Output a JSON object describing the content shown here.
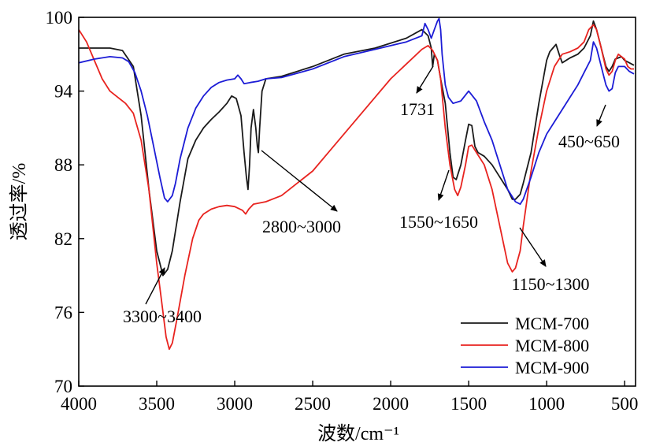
{
  "chart_data": {
    "type": "line",
    "title": "",
    "xlabel": "波数/cm⁻¹",
    "ylabel": "透过率/%",
    "xlim": [
      4000,
      430
    ],
    "ylim": [
      70,
      100
    ],
    "x_ticks": [
      4000,
      3500,
      3000,
      2500,
      2000,
      1500,
      1000,
      500
    ],
    "x_tick_labels": [
      "4000",
      "3500",
      "3000",
      "2500",
      "2000",
      "1500",
      "1000",
      "500"
    ],
    "y_ticks": [
      70,
      76,
      82,
      88,
      94,
      100
    ],
    "y_tick_labels": [
      "70",
      "76",
      "82",
      "88",
      "94",
      "100"
    ],
    "legend": {
      "placement": "bottom-right",
      "entries": [
        "MCM-700",
        "MCM-800",
        "MCM-900"
      ]
    },
    "colors": {
      "MCM-700": "#1a1a1a",
      "MCM-800": "#e8231f",
      "MCM-900": "#1c1cd6"
    },
    "series": [
      {
        "name": "MCM-700",
        "points": [
          [
            4000,
            97.5
          ],
          [
            3800,
            97.5
          ],
          [
            3720,
            97.3
          ],
          [
            3650,
            96
          ],
          [
            3600,
            92
          ],
          [
            3550,
            86
          ],
          [
            3500,
            81
          ],
          [
            3460,
            79
          ],
          [
            3430,
            79.5
          ],
          [
            3400,
            81
          ],
          [
            3350,
            85
          ],
          [
            3300,
            88.5
          ],
          [
            3250,
            90
          ],
          [
            3200,
            91
          ],
          [
            3150,
            91.7
          ],
          [
            3100,
            92.3
          ],
          [
            3050,
            93
          ],
          [
            3020,
            93.6
          ],
          [
            2990,
            93.4
          ],
          [
            2960,
            92
          ],
          [
            2940,
            89
          ],
          [
            2925,
            87
          ],
          [
            2915,
            86
          ],
          [
            2905,
            88
          ],
          [
            2895,
            91
          ],
          [
            2880,
            92.5
          ],
          [
            2865,
            91
          ],
          [
            2855,
            89.5
          ],
          [
            2848,
            89
          ],
          [
            2840,
            91
          ],
          [
            2825,
            94
          ],
          [
            2800,
            95
          ],
          [
            2700,
            95.2
          ],
          [
            2500,
            96
          ],
          [
            2300,
            97
          ],
          [
            2100,
            97.5
          ],
          [
            1900,
            98.3
          ],
          [
            1800,
            99
          ],
          [
            1760,
            98.5
          ],
          [
            1740,
            97.5
          ],
          [
            1731,
            96
          ],
          [
            1720,
            97
          ],
          [
            1700,
            96.5
          ],
          [
            1680,
            95
          ],
          [
            1650,
            93
          ],
          [
            1620,
            89
          ],
          [
            1600,
            87
          ],
          [
            1580,
            86.8
          ],
          [
            1550,
            88
          ],
          [
            1520,
            90
          ],
          [
            1500,
            91.3
          ],
          [
            1480,
            91.2
          ],
          [
            1460,
            89.5
          ],
          [
            1440,
            89
          ],
          [
            1400,
            88.7
          ],
          [
            1350,
            88
          ],
          [
            1300,
            87
          ],
          [
            1250,
            86
          ],
          [
            1220,
            85.2
          ],
          [
            1200,
            85.2
          ],
          [
            1170,
            85.6
          ],
          [
            1150,
            86.5
          ],
          [
            1100,
            89
          ],
          [
            1050,
            93
          ],
          [
            1000,
            96.5
          ],
          [
            980,
            97.2
          ],
          [
            960,
            97.5
          ],
          [
            940,
            97.8
          ],
          [
            920,
            97
          ],
          [
            900,
            96.3
          ],
          [
            850,
            96.7
          ],
          [
            800,
            97
          ],
          [
            760,
            97.5
          ],
          [
            720,
            98.5
          ],
          [
            700,
            99.7
          ],
          [
            680,
            99
          ],
          [
            660,
            98
          ],
          [
            640,
            97
          ],
          [
            620,
            96
          ],
          [
            600,
            95.6
          ],
          [
            580,
            96
          ],
          [
            560,
            96.6
          ],
          [
            520,
            96.8
          ],
          [
            500,
            96.5
          ],
          [
            470,
            96.3
          ],
          [
            440,
            96.1
          ]
        ]
      },
      {
        "name": "MCM-800",
        "points": [
          [
            4000,
            99
          ],
          [
            3950,
            98
          ],
          [
            3900,
            96.5
          ],
          [
            3850,
            95
          ],
          [
            3800,
            94
          ],
          [
            3750,
            93.5
          ],
          [
            3700,
            93
          ],
          [
            3650,
            92.2
          ],
          [
            3600,
            90
          ],
          [
            3550,
            86
          ],
          [
            3500,
            80
          ],
          [
            3470,
            77
          ],
          [
            3440,
            74
          ],
          [
            3420,
            73
          ],
          [
            3400,
            73.5
          ],
          [
            3370,
            75.5
          ],
          [
            3320,
            79
          ],
          [
            3270,
            82
          ],
          [
            3230,
            83.5
          ],
          [
            3200,
            84
          ],
          [
            3150,
            84.4
          ],
          [
            3100,
            84.6
          ],
          [
            3050,
            84.7
          ],
          [
            3000,
            84.6
          ],
          [
            2950,
            84.3
          ],
          [
            2930,
            84
          ],
          [
            2910,
            84.4
          ],
          [
            2880,
            84.8
          ],
          [
            2800,
            85
          ],
          [
            2700,
            85.5
          ],
          [
            2600,
            86.5
          ],
          [
            2500,
            87.5
          ],
          [
            2400,
            89
          ],
          [
            2300,
            90.5
          ],
          [
            2200,
            92
          ],
          [
            2100,
            93.5
          ],
          [
            2000,
            95
          ],
          [
            1900,
            96.2
          ],
          [
            1800,
            97.4
          ],
          [
            1760,
            97.7
          ],
          [
            1730,
            97.3
          ],
          [
            1700,
            96.5
          ],
          [
            1680,
            95
          ],
          [
            1650,
            91
          ],
          [
            1620,
            88
          ],
          [
            1590,
            86
          ],
          [
            1570,
            85.5
          ],
          [
            1550,
            86.2
          ],
          [
            1520,
            88
          ],
          [
            1500,
            89.5
          ],
          [
            1480,
            89.6
          ],
          [
            1450,
            89
          ],
          [
            1400,
            88
          ],
          [
            1350,
            86
          ],
          [
            1300,
            83
          ],
          [
            1250,
            80
          ],
          [
            1220,
            79.3
          ],
          [
            1200,
            79.6
          ],
          [
            1170,
            81
          ],
          [
            1150,
            83
          ],
          [
            1100,
            87.5
          ],
          [
            1050,
            91
          ],
          [
            1000,
            94
          ],
          [
            950,
            96
          ],
          [
            900,
            97
          ],
          [
            850,
            97.2
          ],
          [
            800,
            97.5
          ],
          [
            760,
            98
          ],
          [
            730,
            99
          ],
          [
            700,
            99.4
          ],
          [
            680,
            99
          ],
          [
            650,
            97.5
          ],
          [
            620,
            95.8
          ],
          [
            600,
            95.3
          ],
          [
            580,
            95.6
          ],
          [
            560,
            96.5
          ],
          [
            540,
            97
          ],
          [
            520,
            96.8
          ],
          [
            500,
            96.6
          ],
          [
            480,
            96
          ],
          [
            460,
            95.8
          ],
          [
            440,
            95.8
          ]
        ]
      },
      {
        "name": "MCM-900",
        "points": [
          [
            4000,
            96.3
          ],
          [
            3900,
            96.6
          ],
          [
            3800,
            96.8
          ],
          [
            3720,
            96.7
          ],
          [
            3680,
            96.4
          ],
          [
            3640,
            95.5
          ],
          [
            3600,
            94
          ],
          [
            3560,
            92
          ],
          [
            3520,
            89.5
          ],
          [
            3480,
            87
          ],
          [
            3450,
            85.3
          ],
          [
            3430,
            85
          ],
          [
            3400,
            85.5
          ],
          [
            3380,
            86.5
          ],
          [
            3350,
            88.5
          ],
          [
            3300,
            91
          ],
          [
            3250,
            92.6
          ],
          [
            3200,
            93.6
          ],
          [
            3150,
            94.3
          ],
          [
            3100,
            94.7
          ],
          [
            3050,
            94.9
          ],
          [
            3000,
            95
          ],
          [
            2980,
            95.3
          ],
          [
            2960,
            95
          ],
          [
            2940,
            94.6
          ],
          [
            2900,
            94.7
          ],
          [
            2850,
            94.8
          ],
          [
            2800,
            95
          ],
          [
            2700,
            95.1
          ],
          [
            2500,
            95.8
          ],
          [
            2300,
            96.8
          ],
          [
            2100,
            97.4
          ],
          [
            1900,
            98
          ],
          [
            1800,
            98.5
          ],
          [
            1780,
            99.5
          ],
          [
            1760,
            99
          ],
          [
            1740,
            98.3
          ],
          [
            1720,
            99
          ],
          [
            1700,
            99.7
          ],
          [
            1690,
            99.9
          ],
          [
            1680,
            99
          ],
          [
            1670,
            97
          ],
          [
            1650,
            94.5
          ],
          [
            1630,
            93.5
          ],
          [
            1600,
            93
          ],
          [
            1550,
            93.2
          ],
          [
            1500,
            94
          ],
          [
            1450,
            93.2
          ],
          [
            1400,
            91.5
          ],
          [
            1350,
            90
          ],
          [
            1300,
            88
          ],
          [
            1250,
            86
          ],
          [
            1200,
            85
          ],
          [
            1170,
            84.8
          ],
          [
            1150,
            85.2
          ],
          [
            1100,
            87
          ],
          [
            1050,
            89
          ],
          [
            1000,
            90.5
          ],
          [
            950,
            91.5
          ],
          [
            900,
            92.5
          ],
          [
            850,
            93.5
          ],
          [
            800,
            94.5
          ],
          [
            760,
            95.5
          ],
          [
            720,
            96.5
          ],
          [
            700,
            98
          ],
          [
            680,
            97.5
          ],
          [
            660,
            96.5
          ],
          [
            640,
            95.5
          ],
          [
            620,
            94.5
          ],
          [
            600,
            94
          ],
          [
            580,
            94.2
          ],
          [
            560,
            95.5
          ],
          [
            540,
            96
          ],
          [
            500,
            96
          ],
          [
            470,
            95.6
          ],
          [
            440,
            95.4
          ]
        ]
      }
    ],
    "annotations": [
      {
        "text": "3300~3400",
        "target": [
          3425,
          79.3
        ],
        "placement": "below-left"
      },
      {
        "text": "2800~3000",
        "target": [
          2855,
          89.2
        ],
        "placement": "below-right"
      },
      {
        "text": "1731",
        "target": [
          1731,
          96.2
        ],
        "placement": "below"
      },
      {
        "text": "1550~1650",
        "target": [
          1580,
          86.5
        ],
        "placement": "below"
      },
      {
        "text": "1150~1300",
        "target": [
          1230,
          80
        ],
        "placement": "below-right"
      },
      {
        "text": "450~650",
        "target": [
          600,
          92.8
        ],
        "placement": "below"
      }
    ]
  }
}
